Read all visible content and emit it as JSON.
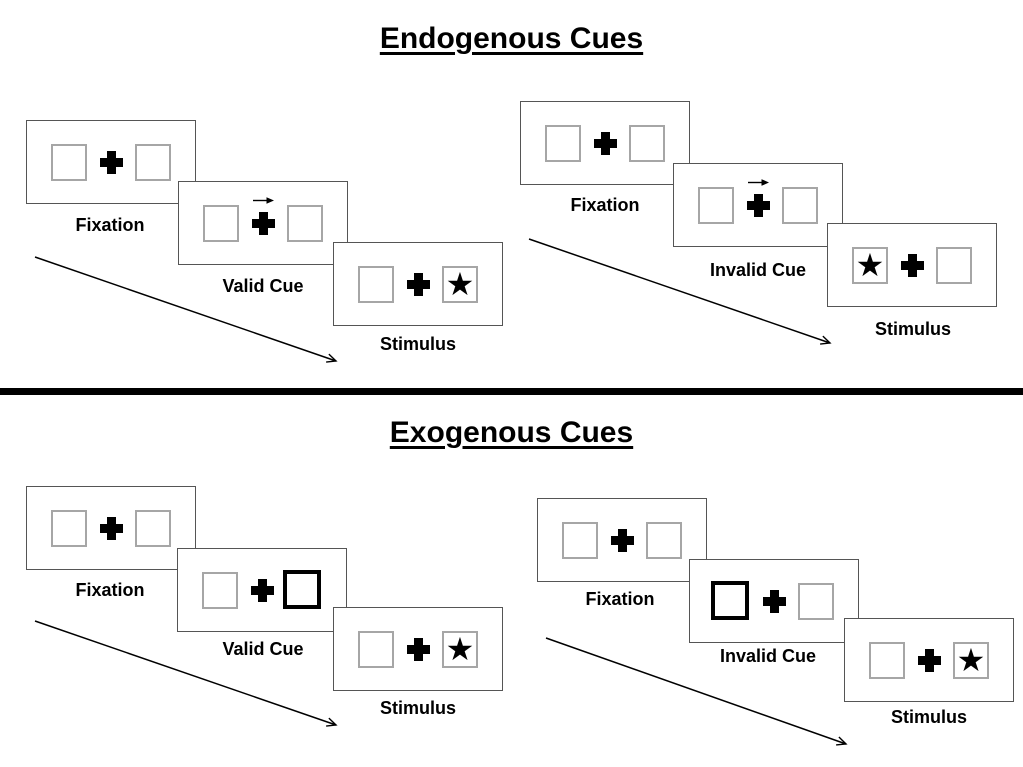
{
  "endogenous": {
    "title": "Endogenous Cues",
    "sequences": [
      {
        "name": "valid",
        "steps": [
          {
            "type": "fixation",
            "label": "Fixation"
          },
          {
            "type": "arrow-cue",
            "label": "Valid Cue",
            "arrow_direction": "right"
          },
          {
            "type": "stimulus",
            "label": "Stimulus",
            "star_side": "right"
          }
        ]
      },
      {
        "name": "invalid",
        "steps": [
          {
            "type": "fixation",
            "label": "Fixation"
          },
          {
            "type": "arrow-cue",
            "label": "Invalid Cue",
            "arrow_direction": "right"
          },
          {
            "type": "stimulus",
            "label": "Stimulus",
            "star_side": "left"
          }
        ]
      }
    ]
  },
  "exogenous": {
    "title": "Exogenous Cues",
    "sequences": [
      {
        "name": "valid",
        "steps": [
          {
            "type": "fixation",
            "label": "Fixation"
          },
          {
            "type": "box-cue",
            "label": "Valid Cue",
            "bold_side": "right"
          },
          {
            "type": "stimulus",
            "label": "Stimulus",
            "star_side": "right"
          }
        ]
      },
      {
        "name": "invalid",
        "steps": [
          {
            "type": "fixation",
            "label": "Fixation"
          },
          {
            "type": "box-cue",
            "label": "Invalid Cue",
            "bold_side": "left"
          },
          {
            "type": "stimulus",
            "label": "Stimulus",
            "star_side": "right"
          }
        ]
      }
    ]
  },
  "symbols": {
    "star": "★",
    "fixation_cross": "+",
    "cue_arrow": "→"
  },
  "colors": {
    "background": "#ffffff",
    "ink": "#000000",
    "panel_border": "#555555",
    "box_border": "#a6a6a6",
    "bold_box_border": "#000000"
  }
}
